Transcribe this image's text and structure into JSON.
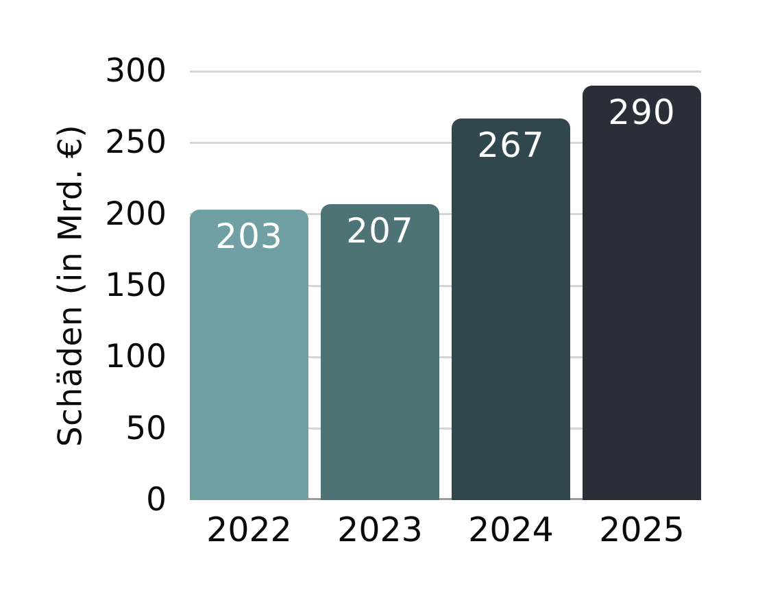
{
  "chart_data": {
    "type": "bar",
    "title": "",
    "categories": [
      "2022",
      "2023",
      "2024",
      "2025"
    ],
    "values": [
      203,
      207,
      267,
      290
    ],
    "bar_labels": [
      "203",
      "207",
      "267",
      "290"
    ],
    "bar_colors": [
      "#70A0A4",
      "#4E7377",
      "#2F474D",
      "#2A2E38"
    ],
    "xlabel": "",
    "ylabel": "Schäden (in Mrd. €)",
    "yticks": [
      0,
      50,
      100,
      150,
      200,
      250,
      300
    ],
    "ylim": [
      0,
      300
    ],
    "grid": "horizontal",
    "gridline_color": "#d5d5d5",
    "axis_line_color": "#9b9b9b",
    "tick_label_color": "#0a0a0a",
    "value_label_color": "#ffffff",
    "background_color": "#ffffff",
    "legend": "none"
  }
}
